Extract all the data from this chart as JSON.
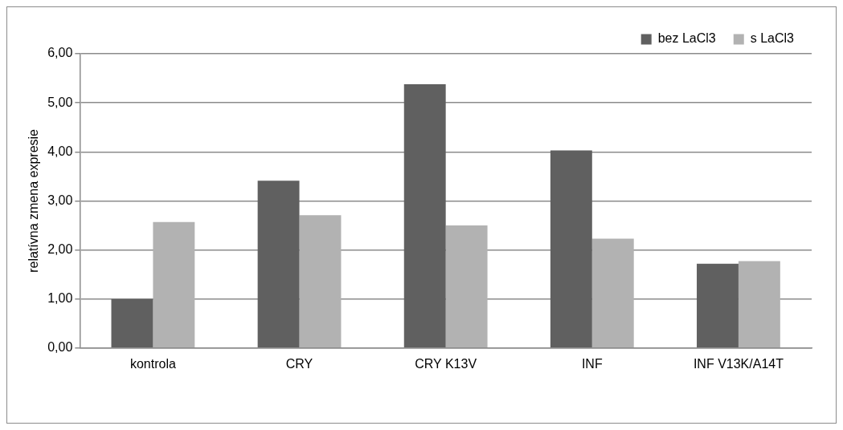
{
  "chart_data": {
    "type": "bar",
    "ylabel": "relatívna zmena expresie",
    "categories": [
      "kontrola",
      "CRY",
      "CRY K13V",
      "INF",
      "INF V13K/A14T"
    ],
    "series": [
      {
        "name": "bez LaCl3",
        "color": "#606060",
        "values": [
          1.0,
          3.41,
          5.38,
          4.03,
          1.72
        ]
      },
      {
        "name": "s LaCl3",
        "color": "#b2b2b2",
        "values": [
          2.57,
          2.71,
          2.5,
          2.23,
          1.77
        ]
      }
    ],
    "ylim": [
      0,
      6
    ],
    "yticks": [
      {
        "value": 0,
        "label": "0,00"
      },
      {
        "value": 1,
        "label": "1,00"
      },
      {
        "value": 2,
        "label": "2,00"
      },
      {
        "value": 3,
        "label": "3,00"
      },
      {
        "value": 4,
        "label": "4,00"
      },
      {
        "value": 5,
        "label": "5,00"
      },
      {
        "value": 6,
        "label": "6,00"
      }
    ],
    "grid": "y",
    "legend": "top right"
  }
}
